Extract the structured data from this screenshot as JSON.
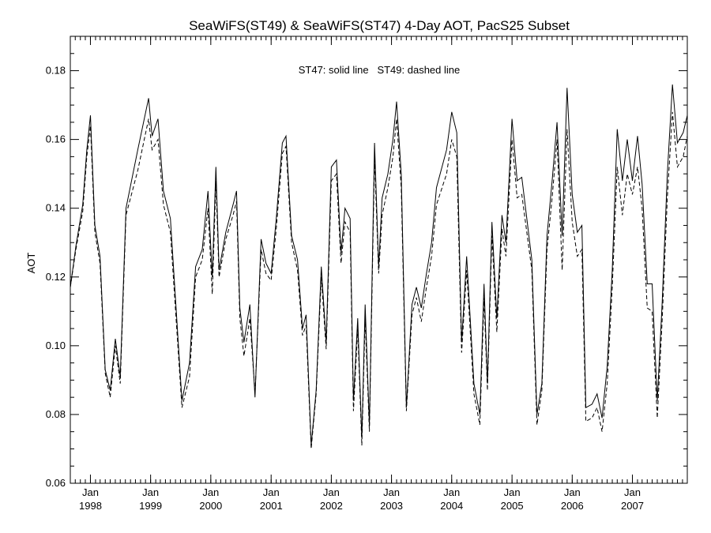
{
  "chart_data": {
    "type": "line",
    "title": "SeaWiFS(ST49) & SeaWiFS(ST47) 4-Day AOT, PacS25 Subset",
    "ylabel": "AOT",
    "xlabel": "",
    "annotation": "ST47: solid line   ST49: dashed line",
    "ylim": [
      0.06,
      0.19
    ],
    "xlim": [
      "1997-09-01",
      "2007-11-30"
    ],
    "grid": false,
    "y_ticks": [
      "0.06",
      "0.08",
      "0.10",
      "0.12",
      "0.14",
      "0.16",
      "0.18"
    ],
    "x_ticks": [
      {
        "month": "Jan",
        "year": "1998",
        "date": "1998-01-01"
      },
      {
        "month": "Jan",
        "year": "1999",
        "date": "1999-01-01"
      },
      {
        "month": "Jan",
        "year": "2000",
        "date": "2000-01-01"
      },
      {
        "month": "Jan",
        "year": "2001",
        "date": "2001-01-01"
      },
      {
        "month": "Jan",
        "year": "2002",
        "date": "2002-01-01"
      },
      {
        "month": "Jan",
        "year": "2003",
        "date": "2003-01-01"
      },
      {
        "month": "Jan",
        "year": "2004",
        "date": "2004-01-01"
      },
      {
        "month": "Jan",
        "year": "2005",
        "date": "2005-01-01"
      },
      {
        "month": "Jan",
        "year": "2006",
        "date": "2006-01-01"
      },
      {
        "month": "Jan",
        "year": "2007",
        "date": "2007-01-01"
      }
    ],
    "series": [
      {
        "style": "solid",
        "color": "#000000",
        "points": [
          [
            "1997-09-01",
            0.117
          ],
          [
            "1997-10-05",
            0.129
          ],
          [
            "1997-11-15",
            0.141
          ],
          [
            "1997-12-10",
            0.157
          ],
          [
            "1998-01-01",
            0.167
          ],
          [
            "1998-01-28",
            0.135
          ],
          [
            "1998-02-28",
            0.126
          ],
          [
            "1998-04-01",
            0.093
          ],
          [
            "1998-05-01",
            0.087
          ],
          [
            "1998-06-01",
            0.102
          ],
          [
            "1998-07-01",
            0.091
          ],
          [
            "1998-08-05",
            0.14
          ],
          [
            "1998-10-15",
            0.157
          ],
          [
            "1998-12-20",
            0.172
          ],
          [
            "1999-01-10",
            0.161
          ],
          [
            "1999-02-15",
            0.166
          ],
          [
            "1999-03-20",
            0.145
          ],
          [
            "1999-05-01",
            0.137
          ],
          [
            "1999-07-10",
            0.084
          ],
          [
            "1999-08-25",
            0.095
          ],
          [
            "1999-10-01",
            0.123
          ],
          [
            "1999-11-10",
            0.128
          ],
          [
            "1999-12-15",
            0.145
          ],
          [
            "2000-01-10",
            0.12
          ],
          [
            "2000-02-01",
            0.152
          ],
          [
            "2000-02-20",
            0.122
          ],
          [
            "2000-04-01",
            0.133
          ],
          [
            "2000-05-15",
            0.141
          ],
          [
            "2000-06-05",
            0.145
          ],
          [
            "2000-06-25",
            0.111
          ],
          [
            "2000-07-20",
            0.101
          ],
          [
            "2000-08-25",
            0.112
          ],
          [
            "2000-09-25",
            0.085
          ],
          [
            "2000-11-01",
            0.131
          ],
          [
            "2000-12-01",
            0.124
          ],
          [
            "2001-01-01",
            0.121
          ],
          [
            "2001-02-01",
            0.137
          ],
          [
            "2001-03-10",
            0.159
          ],
          [
            "2001-04-01",
            0.161
          ],
          [
            "2001-05-05",
            0.132
          ],
          [
            "2001-06-10",
            0.125
          ],
          [
            "2001-07-10",
            0.105
          ],
          [
            "2001-08-01",
            0.109
          ],
          [
            "2001-09-01",
            0.071
          ],
          [
            "2001-10-01",
            0.087
          ],
          [
            "2001-11-01",
            0.123
          ],
          [
            "2001-12-01",
            0.101
          ],
          [
            "2002-01-01",
            0.152
          ],
          [
            "2002-02-01",
            0.154
          ],
          [
            "2002-03-01",
            0.127
          ],
          [
            "2002-03-25",
            0.14
          ],
          [
            "2002-04-25",
            0.137
          ],
          [
            "2002-05-15",
            0.084
          ],
          [
            "2002-06-10",
            0.108
          ],
          [
            "2002-07-05",
            0.073
          ],
          [
            "2002-07-25",
            0.112
          ],
          [
            "2002-08-20",
            0.077
          ],
          [
            "2002-09-20",
            0.159
          ],
          [
            "2002-10-15",
            0.123
          ],
          [
            "2002-11-05",
            0.143
          ],
          [
            "2002-12-10",
            0.15
          ],
          [
            "2003-01-10",
            0.16
          ],
          [
            "2003-02-01",
            0.171
          ],
          [
            "2003-03-01",
            0.15
          ],
          [
            "2003-04-01",
            0.082
          ],
          [
            "2003-05-05",
            0.112
          ],
          [
            "2003-06-01",
            0.117
          ],
          [
            "2003-07-01",
            0.111
          ],
          [
            "2003-08-01",
            0.121
          ],
          [
            "2003-09-01",
            0.13
          ],
          [
            "2003-10-01",
            0.146
          ],
          [
            "2003-12-01",
            0.157
          ],
          [
            "2004-01-01",
            0.168
          ],
          [
            "2004-02-01",
            0.162
          ],
          [
            "2004-03-01",
            0.101
          ],
          [
            "2004-04-01",
            0.126
          ],
          [
            "2004-05-15",
            0.089
          ],
          [
            "2004-06-20",
            0.08
          ],
          [
            "2004-07-15",
            0.118
          ],
          [
            "2004-08-05",
            0.089
          ],
          [
            "2004-09-01",
            0.136
          ],
          [
            "2004-10-01",
            0.108
          ],
          [
            "2004-11-01",
            0.138
          ],
          [
            "2004-11-25",
            0.13
          ],
          [
            "2005-01-01",
            0.166
          ],
          [
            "2005-02-01",
            0.148
          ],
          [
            "2005-03-01",
            0.149
          ],
          [
            "2005-05-01",
            0.125
          ],
          [
            "2005-06-01",
            0.08
          ],
          [
            "2005-07-01",
            0.089
          ],
          [
            "2005-08-01",
            0.132
          ],
          [
            "2005-09-01",
            0.148
          ],
          [
            "2005-10-01",
            0.165
          ],
          [
            "2005-11-01",
            0.132
          ],
          [
            "2005-12-01",
            0.175
          ],
          [
            "2006-01-01",
            0.144
          ],
          [
            "2006-02-01",
            0.133
          ],
          [
            "2006-03-01",
            0.135
          ],
          [
            "2006-03-25",
            0.082
          ],
          [
            "2006-05-01",
            0.083
          ],
          [
            "2006-06-01",
            0.086
          ],
          [
            "2006-07-01",
            0.079
          ],
          [
            "2006-08-01",
            0.094
          ],
          [
            "2006-09-01",
            0.122
          ],
          [
            "2006-10-01",
            0.163
          ],
          [
            "2006-11-01",
            0.148
          ],
          [
            "2006-12-01",
            0.16
          ],
          [
            "2007-01-01",
            0.148
          ],
          [
            "2007-02-01",
            0.161
          ],
          [
            "2007-03-01",
            0.147
          ],
          [
            "2007-04-01",
            0.118
          ],
          [
            "2007-05-01",
            0.118
          ],
          [
            "2007-06-01",
            0.084
          ],
          [
            "2007-07-01",
            0.113
          ],
          [
            "2007-08-01",
            0.15
          ],
          [
            "2007-09-01",
            0.176
          ],
          [
            "2007-10-01",
            0.159
          ],
          [
            "2007-11-05",
            0.162
          ],
          [
            "2007-11-30",
            0.167
          ]
        ]
      },
      {
        "style": "dashed",
        "color": "#000000",
        "points": [
          [
            "1997-09-01",
            0.117
          ],
          [
            "1997-10-05",
            0.128
          ],
          [
            "1997-11-15",
            0.139
          ],
          [
            "1997-12-10",
            0.155
          ],
          [
            "1998-01-01",
            0.164
          ],
          [
            "1998-01-28",
            0.133
          ],
          [
            "1998-02-28",
            0.124
          ],
          [
            "1998-04-01",
            0.092
          ],
          [
            "1998-05-01",
            0.085
          ],
          [
            "1998-06-01",
            0.1
          ],
          [
            "1998-07-01",
            0.089
          ],
          [
            "1998-08-05",
            0.138
          ],
          [
            "1998-10-15",
            0.151
          ],
          [
            "1998-12-20",
            0.166
          ],
          [
            "1999-01-10",
            0.157
          ],
          [
            "1999-02-15",
            0.16
          ],
          [
            "1999-03-20",
            0.141
          ],
          [
            "1999-05-01",
            0.133
          ],
          [
            "1999-07-10",
            0.082
          ],
          [
            "1999-08-25",
            0.091
          ],
          [
            "1999-10-01",
            0.12
          ],
          [
            "1999-11-10",
            0.125
          ],
          [
            "1999-12-15",
            0.14
          ],
          [
            "2000-01-10",
            0.115
          ],
          [
            "2000-02-01",
            0.148
          ],
          [
            "2000-02-20",
            0.12
          ],
          [
            "2000-04-01",
            0.131
          ],
          [
            "2000-05-15",
            0.138
          ],
          [
            "2000-06-05",
            0.142
          ],
          [
            "2000-06-25",
            0.108
          ],
          [
            "2000-07-20",
            0.097
          ],
          [
            "2000-08-25",
            0.108
          ],
          [
            "2000-09-25",
            0.086
          ],
          [
            "2000-11-01",
            0.128
          ],
          [
            "2000-12-01",
            0.121
          ],
          [
            "2001-01-01",
            0.119
          ],
          [
            "2001-02-01",
            0.134
          ],
          [
            "2001-03-10",
            0.156
          ],
          [
            "2001-04-01",
            0.158
          ],
          [
            "2001-05-05",
            0.13
          ],
          [
            "2001-06-10",
            0.122
          ],
          [
            "2001-07-10",
            0.103
          ],
          [
            "2001-08-01",
            0.106
          ],
          [
            "2001-09-01",
            0.07
          ],
          [
            "2001-10-01",
            0.086
          ],
          [
            "2001-11-01",
            0.12
          ],
          [
            "2001-12-01",
            0.099
          ],
          [
            "2002-01-01",
            0.148
          ],
          [
            "2002-02-01",
            0.15
          ],
          [
            "2002-03-01",
            0.124
          ],
          [
            "2002-03-25",
            0.136
          ],
          [
            "2002-04-25",
            0.133
          ],
          [
            "2002-05-15",
            0.081
          ],
          [
            "2002-06-10",
            0.105
          ],
          [
            "2002-07-05",
            0.071
          ],
          [
            "2002-07-25",
            0.108
          ],
          [
            "2002-08-20",
            0.075
          ],
          [
            "2002-09-20",
            0.155
          ],
          [
            "2002-10-15",
            0.121
          ],
          [
            "2002-11-05",
            0.138
          ],
          [
            "2002-12-10",
            0.146
          ],
          [
            "2003-01-10",
            0.155
          ],
          [
            "2003-02-01",
            0.166
          ],
          [
            "2003-03-01",
            0.146
          ],
          [
            "2003-04-01",
            0.081
          ],
          [
            "2003-05-05",
            0.109
          ],
          [
            "2003-06-01",
            0.114
          ],
          [
            "2003-07-01",
            0.107
          ],
          [
            "2003-08-01",
            0.117
          ],
          [
            "2003-09-01",
            0.126
          ],
          [
            "2003-10-01",
            0.141
          ],
          [
            "2003-12-01",
            0.15
          ],
          [
            "2004-01-01",
            0.16
          ],
          [
            "2004-02-01",
            0.155
          ],
          [
            "2004-03-01",
            0.098
          ],
          [
            "2004-04-01",
            0.122
          ],
          [
            "2004-05-15",
            0.086
          ],
          [
            "2004-06-20",
            0.077
          ],
          [
            "2004-07-15",
            0.114
          ],
          [
            "2004-08-05",
            0.087
          ],
          [
            "2004-09-01",
            0.132
          ],
          [
            "2004-10-01",
            0.104
          ],
          [
            "2004-11-01",
            0.134
          ],
          [
            "2004-11-25",
            0.126
          ],
          [
            "2005-01-01",
            0.16
          ],
          [
            "2005-02-01",
            0.143
          ],
          [
            "2005-03-01",
            0.144
          ],
          [
            "2005-05-01",
            0.122
          ],
          [
            "2005-06-01",
            0.077
          ],
          [
            "2005-07-01",
            0.087
          ],
          [
            "2005-08-01",
            0.128
          ],
          [
            "2005-09-01",
            0.143
          ],
          [
            "2005-10-01",
            0.16
          ],
          [
            "2005-11-01",
            0.122
          ],
          [
            "2005-12-01",
            0.163
          ],
          [
            "2006-01-01",
            0.136
          ],
          [
            "2006-02-01",
            0.126
          ],
          [
            "2006-03-01",
            0.128
          ],
          [
            "2006-03-25",
            0.078
          ],
          [
            "2006-05-01",
            0.079
          ],
          [
            "2006-06-01",
            0.082
          ],
          [
            "2006-07-01",
            0.075
          ],
          [
            "2006-08-01",
            0.089
          ],
          [
            "2006-09-01",
            0.117
          ],
          [
            "2006-10-01",
            0.152
          ],
          [
            "2006-11-01",
            0.138
          ],
          [
            "2006-12-01",
            0.15
          ],
          [
            "2007-01-01",
            0.144
          ],
          [
            "2007-02-01",
            0.152
          ],
          [
            "2007-03-01",
            0.14
          ],
          [
            "2007-04-01",
            0.111
          ],
          [
            "2007-05-01",
            0.11
          ],
          [
            "2007-06-01",
            0.079
          ],
          [
            "2007-07-01",
            0.108
          ],
          [
            "2007-08-01",
            0.143
          ],
          [
            "2007-09-01",
            0.168
          ],
          [
            "2007-10-01",
            0.152
          ],
          [
            "2007-11-05",
            0.155
          ],
          [
            "2007-11-30",
            0.161
          ]
        ]
      }
    ]
  }
}
